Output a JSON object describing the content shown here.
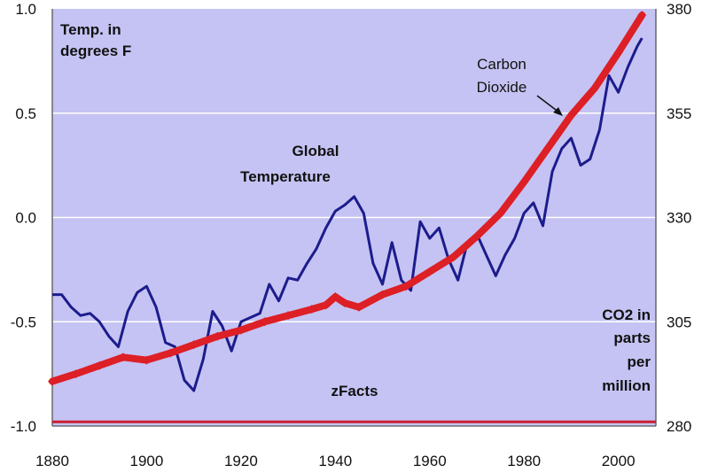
{
  "chart_data": {
    "type": "line",
    "title": "",
    "left_axis_label": [
      "Temp. in",
      "degrees F"
    ],
    "right_axis_label": [
      "CO2 in",
      "parts",
      "per",
      "million"
    ],
    "watermark": "zFacts",
    "annotations": {
      "temperature": [
        "Global",
        "Temperature"
      ],
      "co2": [
        "Carbon",
        "Dioxide"
      ]
    },
    "x_ticks": [
      "1880",
      "1900",
      "1920",
      "1940",
      "1960",
      "1980",
      "2000"
    ],
    "y_left_ticks": [
      "1.0",
      "0.5",
      "0.0",
      "-0.5",
      "-1.0"
    ],
    "y_right_ticks": [
      "380",
      "355",
      "330",
      "305",
      "280"
    ],
    "xlim": [
      1880,
      2008
    ],
    "ylim_left": [
      -1.0,
      1.0
    ],
    "ylim_right": [
      280,
      380
    ],
    "grid": "horizontal",
    "colors": {
      "plot_background": "#c5c3f3",
      "temperature_line": "#1c1c8c",
      "co2_line": "#dd1f26",
      "baseline": "#c8202e",
      "grid": "#ffffff"
    },
    "series": [
      {
        "name": "Global Temperature",
        "axis": "left",
        "x": [
          1880,
          1882,
          1884,
          1886,
          1888,
          1890,
          1892,
          1894,
          1896,
          1898,
          1900,
          1902,
          1904,
          1906,
          1908,
          1910,
          1912,
          1914,
          1916,
          1918,
          1920,
          1922,
          1924,
          1926,
          1928,
          1930,
          1932,
          1934,
          1936,
          1938,
          1940,
          1942,
          1944,
          1946,
          1948,
          1950,
          1952,
          1954,
          1956,
          1958,
          1960,
          1962,
          1964,
          1966,
          1968,
          1970,
          1972,
          1974,
          1976,
          1978,
          1980,
          1982,
          1984,
          1986,
          1988,
          1990,
          1992,
          1994,
          1996,
          1998,
          2000,
          2002,
          2004,
          2005
        ],
        "values": [
          -0.37,
          -0.37,
          -0.43,
          -0.47,
          -0.46,
          -0.5,
          -0.57,
          -0.62,
          -0.45,
          -0.36,
          -0.33,
          -0.43,
          -0.6,
          -0.62,
          -0.78,
          -0.83,
          -0.68,
          -0.45,
          -0.52,
          -0.64,
          -0.5,
          -0.48,
          -0.46,
          -0.32,
          -0.4,
          -0.29,
          -0.3,
          -0.22,
          -0.15,
          -0.05,
          0.03,
          0.06,
          0.1,
          0.02,
          -0.22,
          -0.32,
          -0.12,
          -0.3,
          -0.35,
          -0.02,
          -0.1,
          -0.05,
          -0.2,
          -0.3,
          -0.12,
          -0.08,
          -0.18,
          -0.28,
          -0.18,
          -0.1,
          0.02,
          0.07,
          -0.04,
          0.22,
          0.33,
          0.38,
          0.25,
          0.28,
          0.42,
          0.68,
          0.6,
          0.72,
          0.82,
          0.86
        ]
      },
      {
        "name": "Carbon Dioxide",
        "axis": "right",
        "x": [
          1880,
          1885,
          1890,
          1895,
          1900,
          1905,
          1910,
          1915,
          1920,
          1925,
          1930,
          1935,
          1938,
          1940,
          1942,
          1945,
          1950,
          1955,
          1960,
          1965,
          1970,
          1975,
          1980,
          1985,
          1990,
          1995,
          2000,
          2005
        ],
        "values": [
          290.7,
          292.5,
          294.5,
          296.5,
          295.8,
          297.5,
          299.5,
          301.5,
          303,
          305,
          306.5,
          308,
          309,
          311,
          309.5,
          308.5,
          311.5,
          313.5,
          317,
          320.5,
          325.5,
          331,
          338.5,
          346.5,
          354.5,
          361,
          369.5,
          378.5
        ]
      }
    ]
  }
}
